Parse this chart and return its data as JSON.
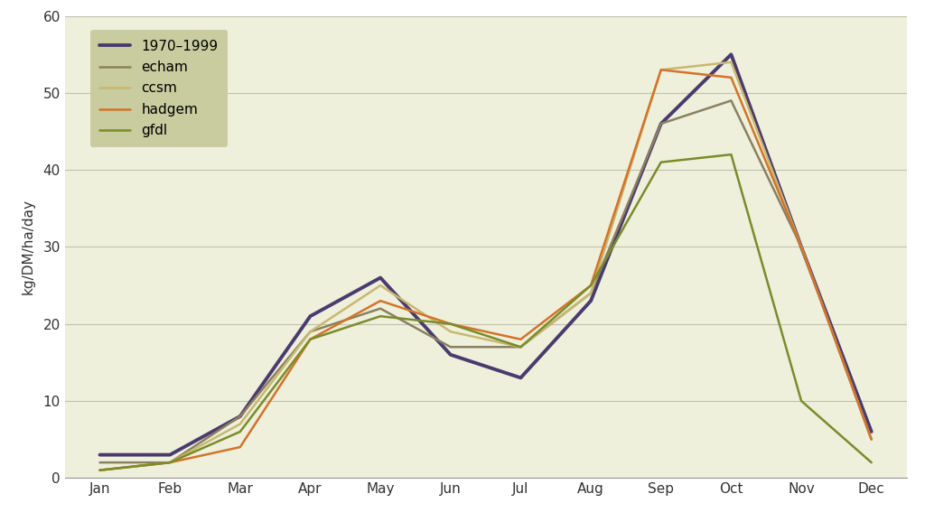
{
  "months": [
    "Jan",
    "Feb",
    "Mar",
    "Apr",
    "May",
    "Jun",
    "Jul",
    "Aug",
    "Sep",
    "Oct",
    "Nov",
    "Dec"
  ],
  "series_order": [
    "1970-1999",
    "echam",
    "ccsm",
    "hadgem",
    "gfdl"
  ],
  "series": {
    "1970-1999": [
      3,
      3,
      8,
      21,
      26,
      16,
      13,
      23,
      46,
      55,
      30,
      6
    ],
    "echam": [
      2,
      2,
      8,
      19,
      22,
      17,
      17,
      24,
      46,
      49,
      30,
      5
    ],
    "ccsm": [
      1,
      2,
      7,
      19,
      25,
      19,
      17,
      24,
      53,
      54,
      30,
      5
    ],
    "hadgem": [
      1,
      2,
      4,
      18,
      23,
      20,
      18,
      25,
      53,
      52,
      30,
      5
    ],
    "gfdl": [
      1,
      2,
      6,
      18,
      21,
      20,
      17,
      25,
      41,
      42,
      10,
      2
    ]
  },
  "colors": {
    "1970-1999": "#4a3b6e",
    "echam": "#8b8060",
    "ccsm": "#c8b870",
    "hadgem": "#d4732a",
    "gfdl": "#7a8c2a"
  },
  "linewidths": {
    "1970-1999": 2.8,
    "echam": 1.8,
    "ccsm": 1.8,
    "hadgem": 1.8,
    "gfdl": 1.8
  },
  "ylabel": "kg/DM/ha/day",
  "ylim": [
    0,
    60
  ],
  "yticks": [
    0,
    10,
    20,
    30,
    40,
    50,
    60
  ],
  "outer_bg": "#ffffff",
  "plot_area_color": "#eef0dc",
  "legend_bg_color": "#c8cc9e",
  "grid_color": "#c0c0b0",
  "axis_fontsize": 11,
  "legend_fontsize": 11
}
